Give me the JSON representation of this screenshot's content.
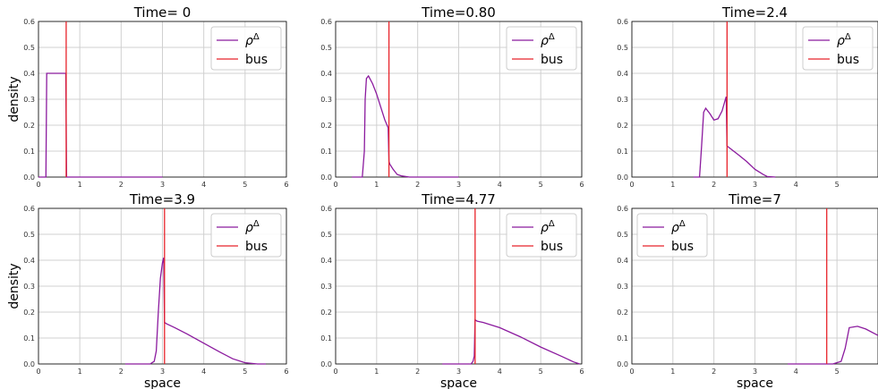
{
  "chart_data": [
    {
      "type": "line",
      "title": "Time= 0",
      "xlabel": "",
      "ylabel": "density",
      "xlim": [
        0,
        6
      ],
      "ylim": [
        0,
        0.6
      ],
      "xticks": [
        "0",
        "1",
        "2",
        "3",
        "4",
        "5",
        "6"
      ],
      "yticks": [
        "0.0",
        "0.1",
        "0.2",
        "0.3",
        "0.4",
        "0.5",
        "0.6"
      ],
      "grid": true,
      "legend_position": "top-right",
      "series": [
        {
          "name": "ρ^Δ",
          "color": "#8b1a9e",
          "x": [
            0.0,
            0.18,
            0.2,
            0.66,
            0.68,
            1.0,
            2.0,
            3.0
          ],
          "y": [
            0.0,
            0.0,
            0.4,
            0.4,
            0.0,
            0.0,
            0.0,
            0.0
          ]
        }
      ],
      "bus_position": 0.67,
      "bus_label": "bus",
      "bus_color": "#e8232a"
    },
    {
      "type": "line",
      "title": "Time=0.80",
      "xlabel": "",
      "ylabel": "",
      "xlim": [
        0,
        6
      ],
      "ylim": [
        0,
        0.6
      ],
      "xticks": [
        "0",
        "1",
        "2",
        "3",
        "4",
        "5",
        "6"
      ],
      "yticks": [
        "0.0",
        "0.1",
        "0.2",
        "0.3",
        "0.4",
        "0.5",
        "0.6"
      ],
      "grid": true,
      "legend_position": "top-right",
      "series": [
        {
          "name": "ρ^Δ",
          "color": "#8b1a9e",
          "x": [
            0.4,
            0.65,
            0.7,
            0.72,
            0.75,
            0.8,
            0.9,
            1.0,
            1.1,
            1.2,
            1.28,
            1.3,
            1.32,
            1.4,
            1.5,
            1.6,
            1.8,
            2.5,
            3.0
          ],
          "y": [
            0.0,
            0.0,
            0.1,
            0.3,
            0.38,
            0.39,
            0.36,
            0.32,
            0.27,
            0.22,
            0.19,
            0.06,
            0.05,
            0.03,
            0.01,
            0.005,
            0.0,
            0.0,
            0.0
          ]
        }
      ],
      "bus_position": 1.3,
      "bus_label": "bus",
      "bus_color": "#e8232a"
    },
    {
      "type": "line",
      "title": "Time=2.4",
      "xlabel": "",
      "ylabel": "",
      "xlim": [
        0,
        6
      ],
      "ylim": [
        0,
        0.6
      ],
      "xticks": [
        "0",
        "1",
        "2",
        "3",
        "4",
        "5"
      ],
      "yticks": [
        "0.0",
        "0.1",
        "0.2",
        "0.3",
        "0.4",
        "0.5",
        "0.6"
      ],
      "grid": true,
      "legend_position": "top-right",
      "series": [
        {
          "name": "ρ^Δ",
          "color": "#8b1a9e",
          "x": [
            1.5,
            1.65,
            1.7,
            1.75,
            1.8,
            1.9,
            2.0,
            2.1,
            2.2,
            2.28,
            2.3,
            2.32,
            2.4,
            2.6,
            2.8,
            3.0,
            3.2,
            3.3,
            3.5
          ],
          "y": [
            0.0,
            0.0,
            0.12,
            0.25,
            0.265,
            0.245,
            0.22,
            0.225,
            0.255,
            0.3,
            0.31,
            0.12,
            0.11,
            0.085,
            0.06,
            0.03,
            0.01,
            0.002,
            0.0
          ]
        }
      ],
      "bus_position": 2.32,
      "bus_label": "bus",
      "bus_color": "#e8232a"
    },
    {
      "type": "line",
      "title": "Time=3.9",
      "xlabel": "space",
      "ylabel": "density",
      "xlim": [
        0,
        6
      ],
      "ylim": [
        0,
        0.6
      ],
      "xticks": [
        "0",
        "1",
        "2",
        "3",
        "4",
        "5",
        "6"
      ],
      "yticks": [
        "0.0",
        "0.1",
        "0.2",
        "0.3",
        "0.4",
        "0.5",
        "0.6"
      ],
      "grid": true,
      "legend_position": "top-right",
      "series": [
        {
          "name": "ρ^Δ",
          "color": "#8b1a9e",
          "x": [
            2.1,
            2.7,
            2.8,
            2.85,
            2.9,
            2.95,
            3.0,
            3.03,
            3.05,
            3.1,
            3.3,
            3.6,
            4.0,
            4.4,
            4.7,
            5.0,
            5.3,
            5.5
          ],
          "y": [
            0.0,
            0.0,
            0.01,
            0.05,
            0.2,
            0.33,
            0.39,
            0.41,
            0.16,
            0.155,
            0.14,
            0.115,
            0.08,
            0.045,
            0.02,
            0.005,
            0.0,
            0.0
          ]
        }
      ],
      "bus_position": 3.05,
      "bus_label": "bus",
      "bus_color": "#e8232a"
    },
    {
      "type": "line",
      "title": "Time=4.77",
      "xlabel": "space",
      "ylabel": "",
      "xlim": [
        0,
        6
      ],
      "ylim": [
        0,
        0.6
      ],
      "xticks": [
        "0",
        "1",
        "2",
        "3",
        "4",
        "5",
        "6"
      ],
      "yticks": [
        "0.0",
        "0.1",
        "0.2",
        "0.3",
        "0.4",
        "0.5",
        "0.6"
      ],
      "grid": true,
      "legend_position": "top-right",
      "series": [
        {
          "name": "ρ^Δ",
          "color": "#8b1a9e",
          "x": [
            2.6,
            3.3,
            3.35,
            3.38,
            3.4,
            3.45,
            3.6,
            4.0,
            4.5,
            5.0,
            5.5,
            5.8,
            5.95
          ],
          "y": [
            0.0,
            0.0,
            0.01,
            0.03,
            0.17,
            0.165,
            0.16,
            0.14,
            0.105,
            0.065,
            0.03,
            0.008,
            0.0
          ]
        }
      ],
      "bus_position": 3.4,
      "bus_label": "bus",
      "bus_color": "#e8232a"
    },
    {
      "type": "line",
      "title": "Time=7",
      "xlabel": "space",
      "ylabel": "",
      "xlim": [
        0,
        6
      ],
      "ylim": [
        0,
        0.6
      ],
      "xticks": [
        "0",
        "1",
        "2",
        "3",
        "4",
        "5"
      ],
      "yticks": [
        "0.0",
        "0.1",
        "0.2",
        "0.3",
        "0.4",
        "0.5",
        "0.6"
      ],
      "grid": true,
      "legend_position": "top-left",
      "series": [
        {
          "name": "ρ^Δ",
          "color": "#8b1a9e",
          "x": [
            3.8,
            4.9,
            5.1,
            5.2,
            5.3,
            5.5,
            5.7,
            6.0
          ],
          "y": [
            0.0,
            0.0,
            0.01,
            0.06,
            0.14,
            0.145,
            0.135,
            0.11
          ]
        }
      ],
      "bus_position": 4.75,
      "bus_label": "bus",
      "bus_color": "#e8232a"
    }
  ]
}
